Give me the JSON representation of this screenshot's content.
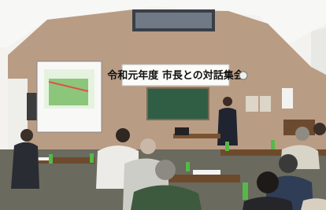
{
  "banner": {
    "title": "令和元年度 市長との対話集会"
  }
}
